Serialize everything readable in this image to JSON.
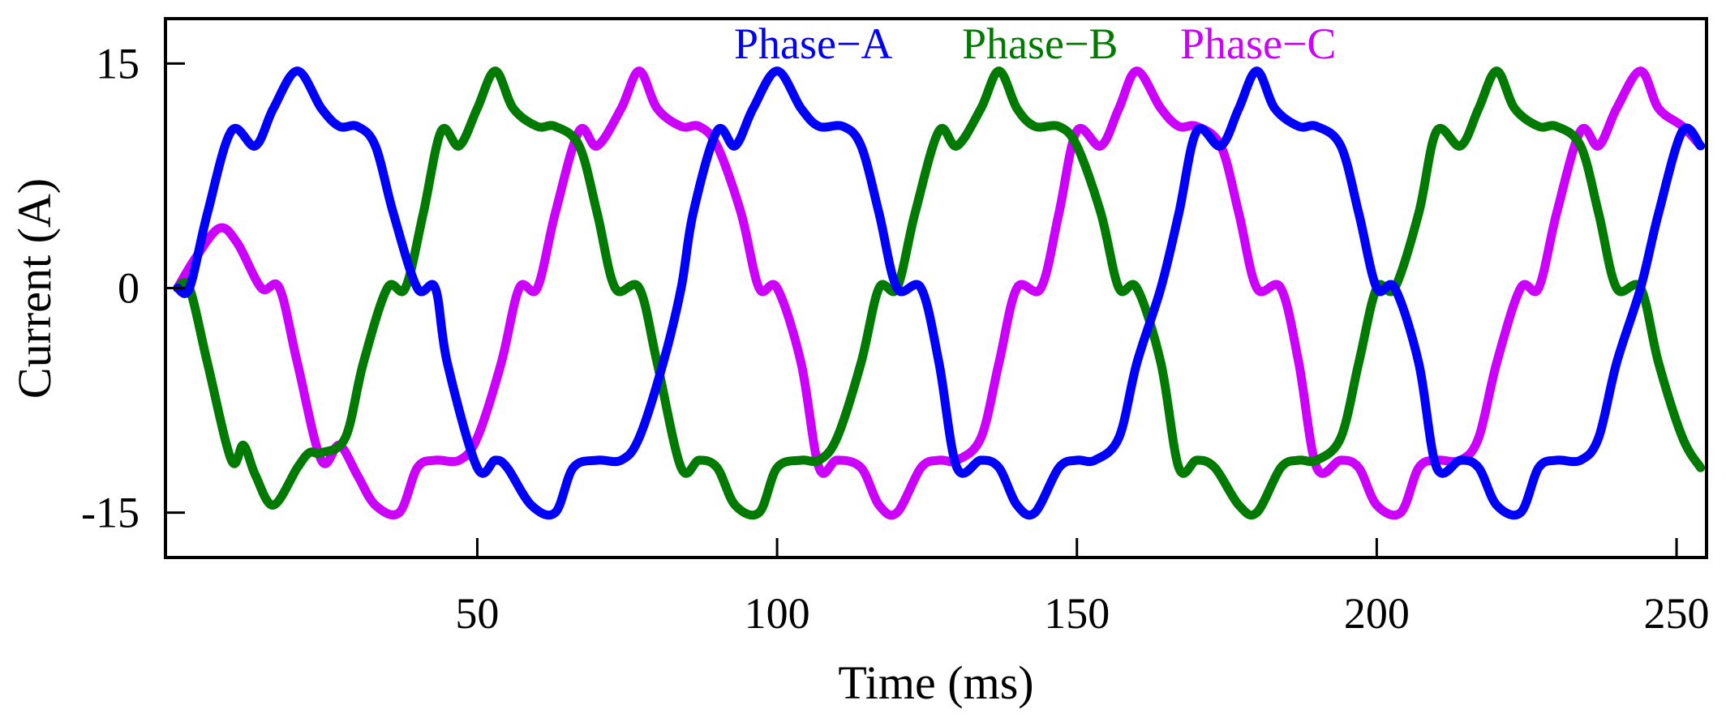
{
  "chart_data": {
    "type": "line",
    "title": "",
    "xlabel": "Time (ms)",
    "ylabel": "Current (A)",
    "xlim": [
      -2,
      255
    ],
    "ylim": [
      -18,
      18
    ],
    "xticks": [
      50,
      100,
      150,
      200,
      250
    ],
    "yticks": [
      15,
      0,
      -15
    ],
    "xtick_labels": [
      "50",
      "100",
      "150",
      "200",
      "250"
    ],
    "ytick_labels": [
      "15",
      "0",
      "-15"
    ],
    "grid": false,
    "legend_position": "top-center",
    "series": [
      {
        "name": "Phase−A",
        "color": "#0000ff",
        "x": [
          0,
          2,
          5,
          9,
          13,
          16,
          20,
          24,
          27,
          30,
          33,
          36,
          40,
          43,
          45,
          50,
          53,
          55,
          59,
          63,
          66,
          70,
          74,
          77,
          81,
          84,
          86,
          90,
          93,
          96,
          100,
          104,
          107,
          111,
          114,
          117,
          120,
          124,
          127,
          130,
          134,
          137,
          140,
          143,
          147,
          150,
          153,
          157,
          160,
          164,
          167,
          170,
          174,
          177,
          180,
          183,
          187,
          190,
          194,
          197,
          200,
          203,
          207,
          210,
          214,
          217,
          220,
          224,
          227,
          230,
          234,
          237,
          240,
          244,
          247,
          251,
          254
        ],
        "y": [
          0,
          0,
          5,
          10.5,
          9.5,
          12,
          14.5,
          12,
          10.8,
          10.8,
          9.5,
          5,
          0,
          0,
          -5,
          -12,
          -11.5,
          -12,
          -14.5,
          -15,
          -12,
          -11.5,
          -11.5,
          -10,
          -5,
          0,
          5,
          10.5,
          9.5,
          12,
          14.5,
          12,
          10.8,
          10.8,
          9.5,
          5,
          0,
          0,
          -5,
          -12,
          -11.5,
          -12,
          -14.5,
          -15,
          -12,
          -11.5,
          -11.5,
          -10,
          -5,
          0,
          5,
          10.5,
          9.5,
          12,
          14.5,
          12,
          10.8,
          10.8,
          9.5,
          5,
          0,
          0,
          -5,
          -12,
          -11.5,
          -12,
          -14.5,
          -15,
          -12,
          -11.5,
          -11.5,
          -10,
          -5,
          0,
          5,
          10.5,
          9.5
        ]
      },
      {
        "name": "Phase−B",
        "color": "#007a00",
        "x": [
          0,
          2,
          5,
          9,
          11,
          13,
          16,
          20,
          22,
          24,
          28,
          31,
          35,
          38,
          41,
          44,
          47,
          50,
          53,
          56,
          60,
          63,
          67,
          70,
          73,
          77,
          80,
          84,
          87,
          90,
          93,
          97,
          100,
          104,
          107,
          110,
          114,
          117,
          120,
          123,
          127,
          130,
          134,
          137,
          140,
          143,
          147,
          150,
          154,
          157,
          160,
          164,
          167,
          170,
          173,
          177,
          180,
          184,
          187,
          190,
          194,
          197,
          200,
          203,
          207,
          210,
          214,
          217,
          220,
          223,
          227,
          230,
          234,
          237,
          240,
          244,
          247,
          251,
          254
        ],
        "y": [
          0,
          0,
          -5,
          -11.5,
          -10.5,
          -12.5,
          -14.5,
          -12,
          -11,
          -11,
          -10,
          -5,
          0,
          0,
          5,
          10.5,
          9.5,
          12,
          14.5,
          12,
          10.8,
          10.8,
          9.5,
          5,
          0,
          0,
          -5,
          -12,
          -11.5,
          -12,
          -14.5,
          -15,
          -12,
          -11.5,
          -11.5,
          -10,
          -5,
          0,
          0,
          5,
          10.5,
          9.5,
          12,
          14.5,
          12,
          10.8,
          10.8,
          9.5,
          5,
          0,
          0,
          -5,
          -12,
          -11.5,
          -12,
          -14.5,
          -15,
          -12,
          -11.5,
          -11.5,
          -10,
          -5,
          0,
          0,
          5,
          10.5,
          9.5,
          12,
          14.5,
          12,
          10.8,
          10.8,
          9.5,
          5,
          0,
          0,
          -5,
          -10,
          -12
        ],
        "comment": ""
      },
      {
        "name": "Phase−C",
        "color": "#cc00ff",
        "x": [
          0,
          3,
          7,
          10,
          14,
          17,
          20,
          24,
          27,
          30,
          33,
          37,
          40,
          43,
          47,
          50,
          54,
          57,
          60,
          63,
          67,
          70,
          74,
          77,
          80,
          84,
          87,
          90,
          94,
          97,
          100,
          104,
          107,
          110,
          114,
          117,
          120,
          124,
          127,
          130,
          134,
          137,
          140,
          144,
          147,
          150,
          154,
          157,
          160,
          164,
          167,
          170,
          174,
          177,
          180,
          184,
          187,
          190,
          194,
          197,
          200,
          204,
          207,
          210,
          214,
          217,
          220,
          224,
          227,
          230,
          234,
          237,
          240,
          244,
          247,
          251,
          254
        ],
        "y": [
          0,
          2,
          4,
          3,
          0,
          0,
          -5,
          -11.5,
          -10.5,
          -12.5,
          -14.5,
          -15,
          -12,
          -11.5,
          -11.5,
          -10,
          -5,
          0,
          0,
          5,
          10.5,
          9.5,
          12,
          14.5,
          12,
          10.8,
          10.8,
          9.5,
          5,
          0,
          0,
          -5,
          -12,
          -11.5,
          -12,
          -14.5,
          -15,
          -12,
          -11.5,
          -11.5,
          -10,
          -5,
          0,
          0,
          5,
          10.5,
          9.5,
          12,
          14.5,
          12,
          10.8,
          10.8,
          9.5,
          5,
          0,
          0,
          -5,
          -12,
          -11.5,
          -12,
          -14.5,
          -15,
          -12,
          -11.5,
          -11.5,
          -10,
          -5,
          0,
          0,
          5,
          10.5,
          9.5,
          12,
          14.5,
          12,
          10.8,
          9.5
        ]
      }
    ]
  }
}
